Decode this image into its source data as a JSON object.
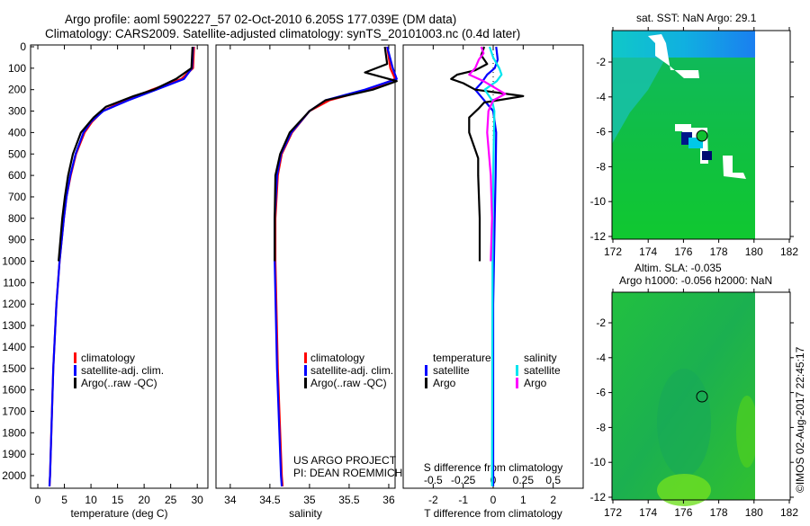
{
  "header": {
    "title_line1": "Argo profile: aoml 5902227_57 02-Oct-2010 6.205S 177.039E (DM data)",
    "title_line2": "Climatology: CARS2009. Satellite-adjusted climatology: synTS_20101003.nc (0.4d later)"
  },
  "colors": {
    "climatology": "#ff0000",
    "satellite": "#0000ff",
    "argo": "#000000",
    "sal_satellite": "#00e5ee",
    "sal_argo": "#ff00ff"
  },
  "credits": {
    "project": "US ARGO PROJECT",
    "pi": "PI: DEAN ROEMMICH",
    "timestamp": "©IMOS 02-Aug-2017 22:45:17"
  },
  "chart_data": [
    {
      "type": "line",
      "id": "temperature",
      "xlabel": "temperature (deg C)",
      "ylabel": "depth",
      "xticks": [
        0,
        5,
        10,
        15,
        20,
        25,
        30
      ],
      "yticks": [
        0,
        100,
        200,
        300,
        400,
        500,
        600,
        700,
        800,
        900,
        1000,
        1100,
        1200,
        1300,
        1400,
        1500,
        1600,
        1700,
        1800,
        1900,
        2000
      ],
      "ylim": [
        2050,
        0
      ],
      "legend": [
        "climatology",
        "satellite-adj. clim.",
        "Argo(..raw -QC)"
      ],
      "series": [
        {
          "name": "climatology",
          "color": "#ff0000",
          "depth": [
            0,
            100,
            150,
            200,
            250,
            300,
            350,
            400,
            500,
            600,
            700,
            800,
            1000,
            1200,
            1500,
            2000,
            2050
          ],
          "values": [
            29.4,
            29.2,
            27.0,
            21.5,
            16.5,
            12.2,
            10.2,
            8.8,
            7.2,
            6.2,
            5.4,
            4.9,
            4.1,
            3.5,
            2.9,
            2.3,
            2.2
          ]
        },
        {
          "name": "satellite-adj. clim.",
          "color": "#0000ff",
          "depth": [
            0,
            100,
            150,
            200,
            250,
            300,
            350,
            400,
            500,
            600,
            700,
            800,
            1000,
            1200,
            1500,
            2000,
            2050
          ],
          "values": [
            29.2,
            29.0,
            27.5,
            22.3,
            17.0,
            12.3,
            10.0,
            8.6,
            7.1,
            6.1,
            5.4,
            4.9,
            4.1,
            3.5,
            2.9,
            2.3,
            2.2
          ]
        },
        {
          "name": "Argo(..raw -QC)",
          "color": "#000000",
          "depth": [
            0,
            100,
            150,
            200,
            230,
            280,
            330,
            400,
            500,
            600,
            700,
            800,
            1000
          ],
          "values": [
            29.1,
            28.9,
            26.0,
            21.8,
            18.0,
            12.8,
            10.5,
            8.1,
            6.6,
            5.7,
            5.1,
            4.6,
            3.9
          ]
        }
      ]
    },
    {
      "type": "line",
      "id": "salinity",
      "xlabel": "salinity",
      "xticks": [
        34,
        34.5,
        35,
        35.5,
        36
      ],
      "ylim": [
        2050,
        0
      ],
      "legend": [
        "climatology",
        "satellite-adj. clim.",
        "Argo(..raw -QC)"
      ],
      "series": [
        {
          "name": "climatology",
          "color": "#ff0000",
          "depth": [
            0,
            100,
            150,
            200,
            250,
            300,
            400,
            500,
            600,
            800,
            1000,
            1500,
            2000,
            2050
          ],
          "values": [
            35.98,
            36.02,
            36.08,
            35.75,
            35.25,
            35.0,
            34.78,
            34.65,
            34.6,
            34.57,
            34.57,
            34.6,
            34.65,
            34.66
          ]
        },
        {
          "name": "satellite-adj. clim.",
          "color": "#0000ff",
          "depth": [
            0,
            100,
            150,
            200,
            250,
            300,
            400,
            500,
            600,
            800,
            1000,
            1500,
            2000,
            2050
          ],
          "values": [
            35.98,
            36.05,
            36.1,
            35.7,
            35.2,
            35.0,
            34.77,
            34.64,
            34.59,
            34.56,
            34.56,
            34.59,
            34.64,
            34.65
          ]
        },
        {
          "name": "Argo(..raw -QC)",
          "color": "#000000",
          "depth": [
            0,
            80,
            120,
            160,
            200,
            250,
            300,
            400,
            500,
            600,
            800,
            1000
          ],
          "values": [
            35.95,
            35.98,
            35.7,
            36.1,
            35.8,
            35.2,
            35.0,
            34.75,
            34.63,
            34.57,
            34.56,
            34.56
          ]
        }
      ]
    },
    {
      "type": "line",
      "id": "difference",
      "xlabel": "T difference from climatology",
      "xlabel2": "S difference from climatology",
      "xticks": [
        -2,
        -1,
        0,
        1,
        2
      ],
      "xticks2": [
        "-0.5",
        "-0.25",
        "0",
        "0.25",
        "0.5"
      ],
      "legend_temperature": "temperature",
      "legend_salinity": "salinity",
      "legend_items": [
        "satellite",
        "Argo",
        "satellite",
        "Argo"
      ],
      "series": [
        {
          "name": "T satellite",
          "color": "#0000ff",
          "unit": "T",
          "depth": [
            0,
            60,
            100,
            130,
            170,
            200,
            250,
            300,
            400,
            600,
            800,
            1200,
            2050
          ],
          "values": [
            0.1,
            0.15,
            0.05,
            -0.2,
            -0.4,
            -0.6,
            -0.3,
            0.0,
            0.1,
            0.08,
            0.05,
            0.0,
            0.0
          ]
        },
        {
          "name": "T Argo",
          "color": "#000000",
          "unit": "T",
          "depth": [
            0,
            40,
            80,
            110,
            130,
            150,
            170,
            200,
            230,
            260,
            290,
            330,
            400,
            480,
            520,
            600,
            800,
            1000
          ],
          "values": [
            -0.3,
            -0.4,
            -0.2,
            -0.6,
            -1.2,
            -1.4,
            -1.0,
            -0.6,
            1.0,
            -0.3,
            -0.5,
            -0.8,
            -0.8,
            -0.6,
            -0.5,
            -0.5,
            -0.45,
            -0.45
          ]
        },
        {
          "name": "S satellite",
          "color": "#00e5ee",
          "unit": "S",
          "depth": [
            0,
            50,
            100,
            130,
            160,
            200,
            250,
            300,
            600,
            1000,
            2050
          ],
          "values": [
            -0.03,
            0.0,
            0.05,
            0.07,
            0.03,
            -0.07,
            -0.01,
            0.01,
            0.0,
            -0.005,
            -0.01
          ]
        },
        {
          "name": "S Argo",
          "color": "#ff00ff",
          "unit": "S",
          "depth": [
            0,
            30,
            60,
            100,
            130,
            160,
            200,
            220,
            250,
            300,
            400,
            600,
            800,
            1000
          ],
          "values": [
            -0.1,
            -0.08,
            -0.12,
            -0.15,
            -0.2,
            -0.08,
            0.04,
            0.1,
            0.0,
            -0.04,
            -0.05,
            -0.02,
            -0.01,
            -0.02
          ]
        }
      ]
    },
    {
      "type": "heatmap",
      "id": "sst-map",
      "title": "sat. SST: NaN Argo: 29.1",
      "xticks": [
        172,
        174,
        176,
        178,
        180,
        182
      ],
      "yticks": [
        -2,
        -4,
        -6,
        -8,
        -10,
        -12
      ],
      "marker": {
        "lon": 177.039,
        "lat": -6.205
      }
    },
    {
      "type": "heatmap",
      "id": "sla-map",
      "title_line1": "Altim. SLA: -0.035",
      "title_line2": "Argo h1000: -0.056 h2000: NaN",
      "xticks": [
        172,
        174,
        176,
        178,
        180,
        182
      ],
      "yticks": [
        -2,
        -4,
        -6,
        -8,
        -10,
        -12
      ],
      "marker": {
        "lon": 177.039,
        "lat": -6.205
      }
    }
  ]
}
